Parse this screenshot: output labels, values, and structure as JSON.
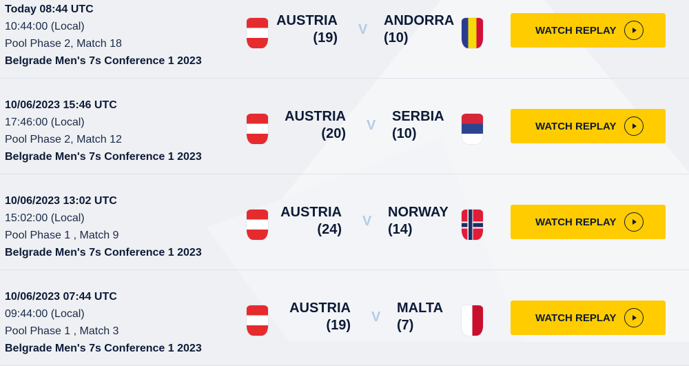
{
  "button_label": "WATCH REPLAY",
  "vs_label": "V",
  "matches": [
    {
      "utc": "Today 08:44 UTC",
      "local": "10:44:00 (Local)",
      "phase": "Pool Phase 2, Match 18",
      "event": "Belgrade Men's 7s Conference 1 2023",
      "home": "AUSTRIA",
      "home_score": "(19)",
      "away": "ANDORRA",
      "away_score": "(10)"
    },
    {
      "utc": "10/06/2023 15:46 UTC",
      "local": "17:46:00 (Local)",
      "phase": "Pool Phase 2, Match 12",
      "event": "Belgrade Men's 7s Conference 1 2023",
      "home": "AUSTRIA",
      "home_score": "(20)",
      "away": "SERBIA",
      "away_score": "(10)"
    },
    {
      "utc": "10/06/2023 13:02 UTC",
      "local": "15:02:00 (Local)",
      "phase": "Pool Phase 1 , Match 9",
      "event": "Belgrade Men's 7s Conference 1 2023",
      "home": "AUSTRIA",
      "home_score": "(24)",
      "away": "NORWAY",
      "away_score": "(14)"
    },
    {
      "utc": "10/06/2023 07:44 UTC",
      "local": "09:44:00 (Local)",
      "phase": "Pool Phase 1 , Match 3",
      "event": "Belgrade Men's 7s Conference 1 2023",
      "home": "AUSTRIA",
      "home_score": "(19)",
      "away": "MALTA",
      "away_score": "(7)"
    }
  ],
  "colors": {
    "button": "#ffcc00",
    "text": "#0c1a36",
    "vs": "#b3cbe6"
  }
}
